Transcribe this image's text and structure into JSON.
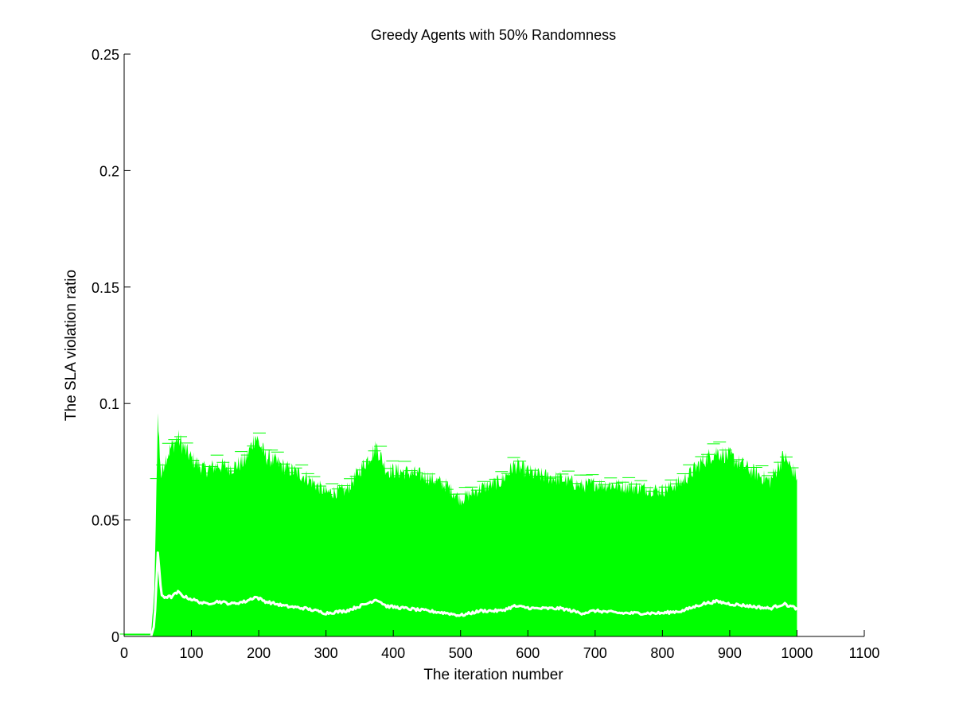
{
  "chart_data": {
    "type": "line",
    "title": "Greedy Agents with 50% Randomness",
    "xlabel": "The iteration number",
    "ylabel": "The SLA violation ratio",
    "xlim": [
      0,
      1100
    ],
    "ylim": [
      0,
      0.25
    ],
    "xticks": [
      "0",
      "100",
      "200",
      "300",
      "400",
      "500",
      "600",
      "700",
      "800",
      "900",
      "1000",
      "1100"
    ],
    "yticks": [
      "0",
      "0.05",
      "0.1",
      "0.15",
      "0.2",
      "0.25"
    ],
    "grid": false,
    "background_color": "#00ff00",
    "series": [
      {
        "style": "mean line with error bars",
        "line_color": "#ffffff",
        "errorbar_color": "#00ff00",
        "x": [
          0,
          30,
          40,
          45,
          50,
          55,
          60,
          70,
          80,
          90,
          100,
          120,
          140,
          160,
          180,
          195,
          210,
          240,
          270,
          300,
          330,
          360,
          375,
          390,
          420,
          450,
          480,
          500,
          530,
          560,
          580,
          610,
          650,
          680,
          700,
          740,
          770,
          800,
          830,
          860,
          880,
          900,
          930,
          960,
          980,
          1000
        ],
        "y": [
          0,
          0,
          0,
          0.005,
          0.036,
          0.018,
          0.017,
          0.017,
          0.019,
          0.017,
          0.016,
          0.014,
          0.015,
          0.014,
          0.015,
          0.017,
          0.015,
          0.013,
          0.012,
          0.01,
          0.011,
          0.014,
          0.016,
          0.013,
          0.012,
          0.011,
          0.01,
          0.009,
          0.011,
          0.011,
          0.013,
          0.012,
          0.012,
          0.01,
          0.011,
          0.01,
          0.01,
          0.01,
          0.011,
          0.014,
          0.015,
          0.014,
          0.013,
          0.012,
          0.014,
          0.012
        ],
        "upper": [
          0.001,
          0.001,
          0.001,
          0.02,
          0.096,
          0.07,
          0.077,
          0.083,
          0.087,
          0.082,
          0.078,
          0.073,
          0.075,
          0.074,
          0.077,
          0.088,
          0.079,
          0.074,
          0.07,
          0.063,
          0.064,
          0.077,
          0.083,
          0.073,
          0.072,
          0.07,
          0.066,
          0.06,
          0.065,
          0.068,
          0.075,
          0.071,
          0.069,
          0.066,
          0.067,
          0.066,
          0.065,
          0.064,
          0.068,
          0.077,
          0.081,
          0.079,
          0.073,
          0.068,
          0.079,
          0.07
        ]
      }
    ]
  }
}
